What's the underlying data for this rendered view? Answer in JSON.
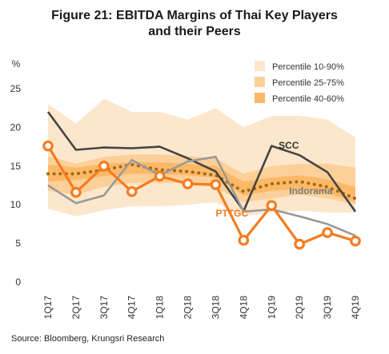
{
  "title_line1": "Figure 21: EBITDA Margins of Thai Key Players",
  "title_line2": "and their Peers",
  "source": "Source: Bloomberg, Krungsri Research",
  "chart_data": {
    "type": "line",
    "title": "Figure 21: EBITDA Margins of Thai Key Players and their Peers",
    "ylabel": "%",
    "ylim": [
      0,
      25
    ],
    "yticks": [
      0,
      5,
      10,
      15,
      20,
      25
    ],
    "grid": false,
    "legend_position": "top-right",
    "categories": [
      "1Q17",
      "2Q17",
      "3Q17",
      "4Q17",
      "1Q18",
      "2Q18",
      "3Q18",
      "4Q18",
      "1Q19",
      "2Q19",
      "3Q19",
      "4Q19"
    ],
    "bands": [
      {
        "name": "Percentile 10-90%",
        "color": "#fde7cc",
        "lower": [
          9.5,
          8.5,
          9.3,
          9.8,
          9.8,
          10.0,
          10.3,
          8.5,
          9.0,
          9.2,
          9.0,
          9.0
        ],
        "upper": [
          23.0,
          20.5,
          23.7,
          22.0,
          22.0,
          21.0,
          22.5,
          20.0,
          21.5,
          21.5,
          21.0,
          18.7
        ]
      },
      {
        "name": "Percentile 25-75%",
        "color": "#fdd09a",
        "lower": [
          11.8,
          11.3,
          12.3,
          12.8,
          12.8,
          12.8,
          12.2,
          10.3,
          10.8,
          11.3,
          10.8,
          10.0
        ],
        "upper": [
          16.3,
          15.3,
          16.2,
          16.5,
          16.5,
          16.3,
          16.0,
          14.0,
          15.0,
          15.3,
          15.3,
          14.8
        ]
      },
      {
        "name": "Percentile 40-60%",
        "color": "#fbb968",
        "lower": [
          13.0,
          13.2,
          13.7,
          14.0,
          14.0,
          13.8,
          13.5,
          11.2,
          11.8,
          12.0,
          11.5,
          10.3
        ],
        "upper": [
          15.2,
          14.8,
          15.3,
          15.5,
          15.5,
          15.3,
          15.0,
          13.0,
          13.5,
          13.8,
          13.3,
          12.3
        ]
      }
    ],
    "median": {
      "color": "#a06a17",
      "values": [
        14.0,
        14.0,
        14.5,
        15.2,
        14.5,
        14.3,
        13.8,
        11.7,
        12.7,
        13.0,
        12.3,
        10.8
      ]
    },
    "series": [
      {
        "name": "SCC",
        "color": "#444444",
        "marker": false,
        "values": [
          22.0,
          17.1,
          17.4,
          17.3,
          17.5,
          16.0,
          14.3,
          9.2,
          17.6,
          16.4,
          14.2,
          9.1
        ]
      },
      {
        "name": "Indorama",
        "color": "#999999",
        "marker": false,
        "values": [
          12.5,
          10.2,
          11.2,
          15.8,
          13.8,
          15.6,
          16.2,
          9.1,
          9.4,
          8.5,
          7.5,
          6.0
        ]
      },
      {
        "name": "PTTGC",
        "color": "#f47c20",
        "marker": true,
        "values": [
          17.6,
          11.6,
          15.0,
          11.7,
          13.7,
          12.7,
          12.6,
          5.4,
          9.9,
          4.9,
          6.4,
          5.3
        ]
      }
    ]
  }
}
